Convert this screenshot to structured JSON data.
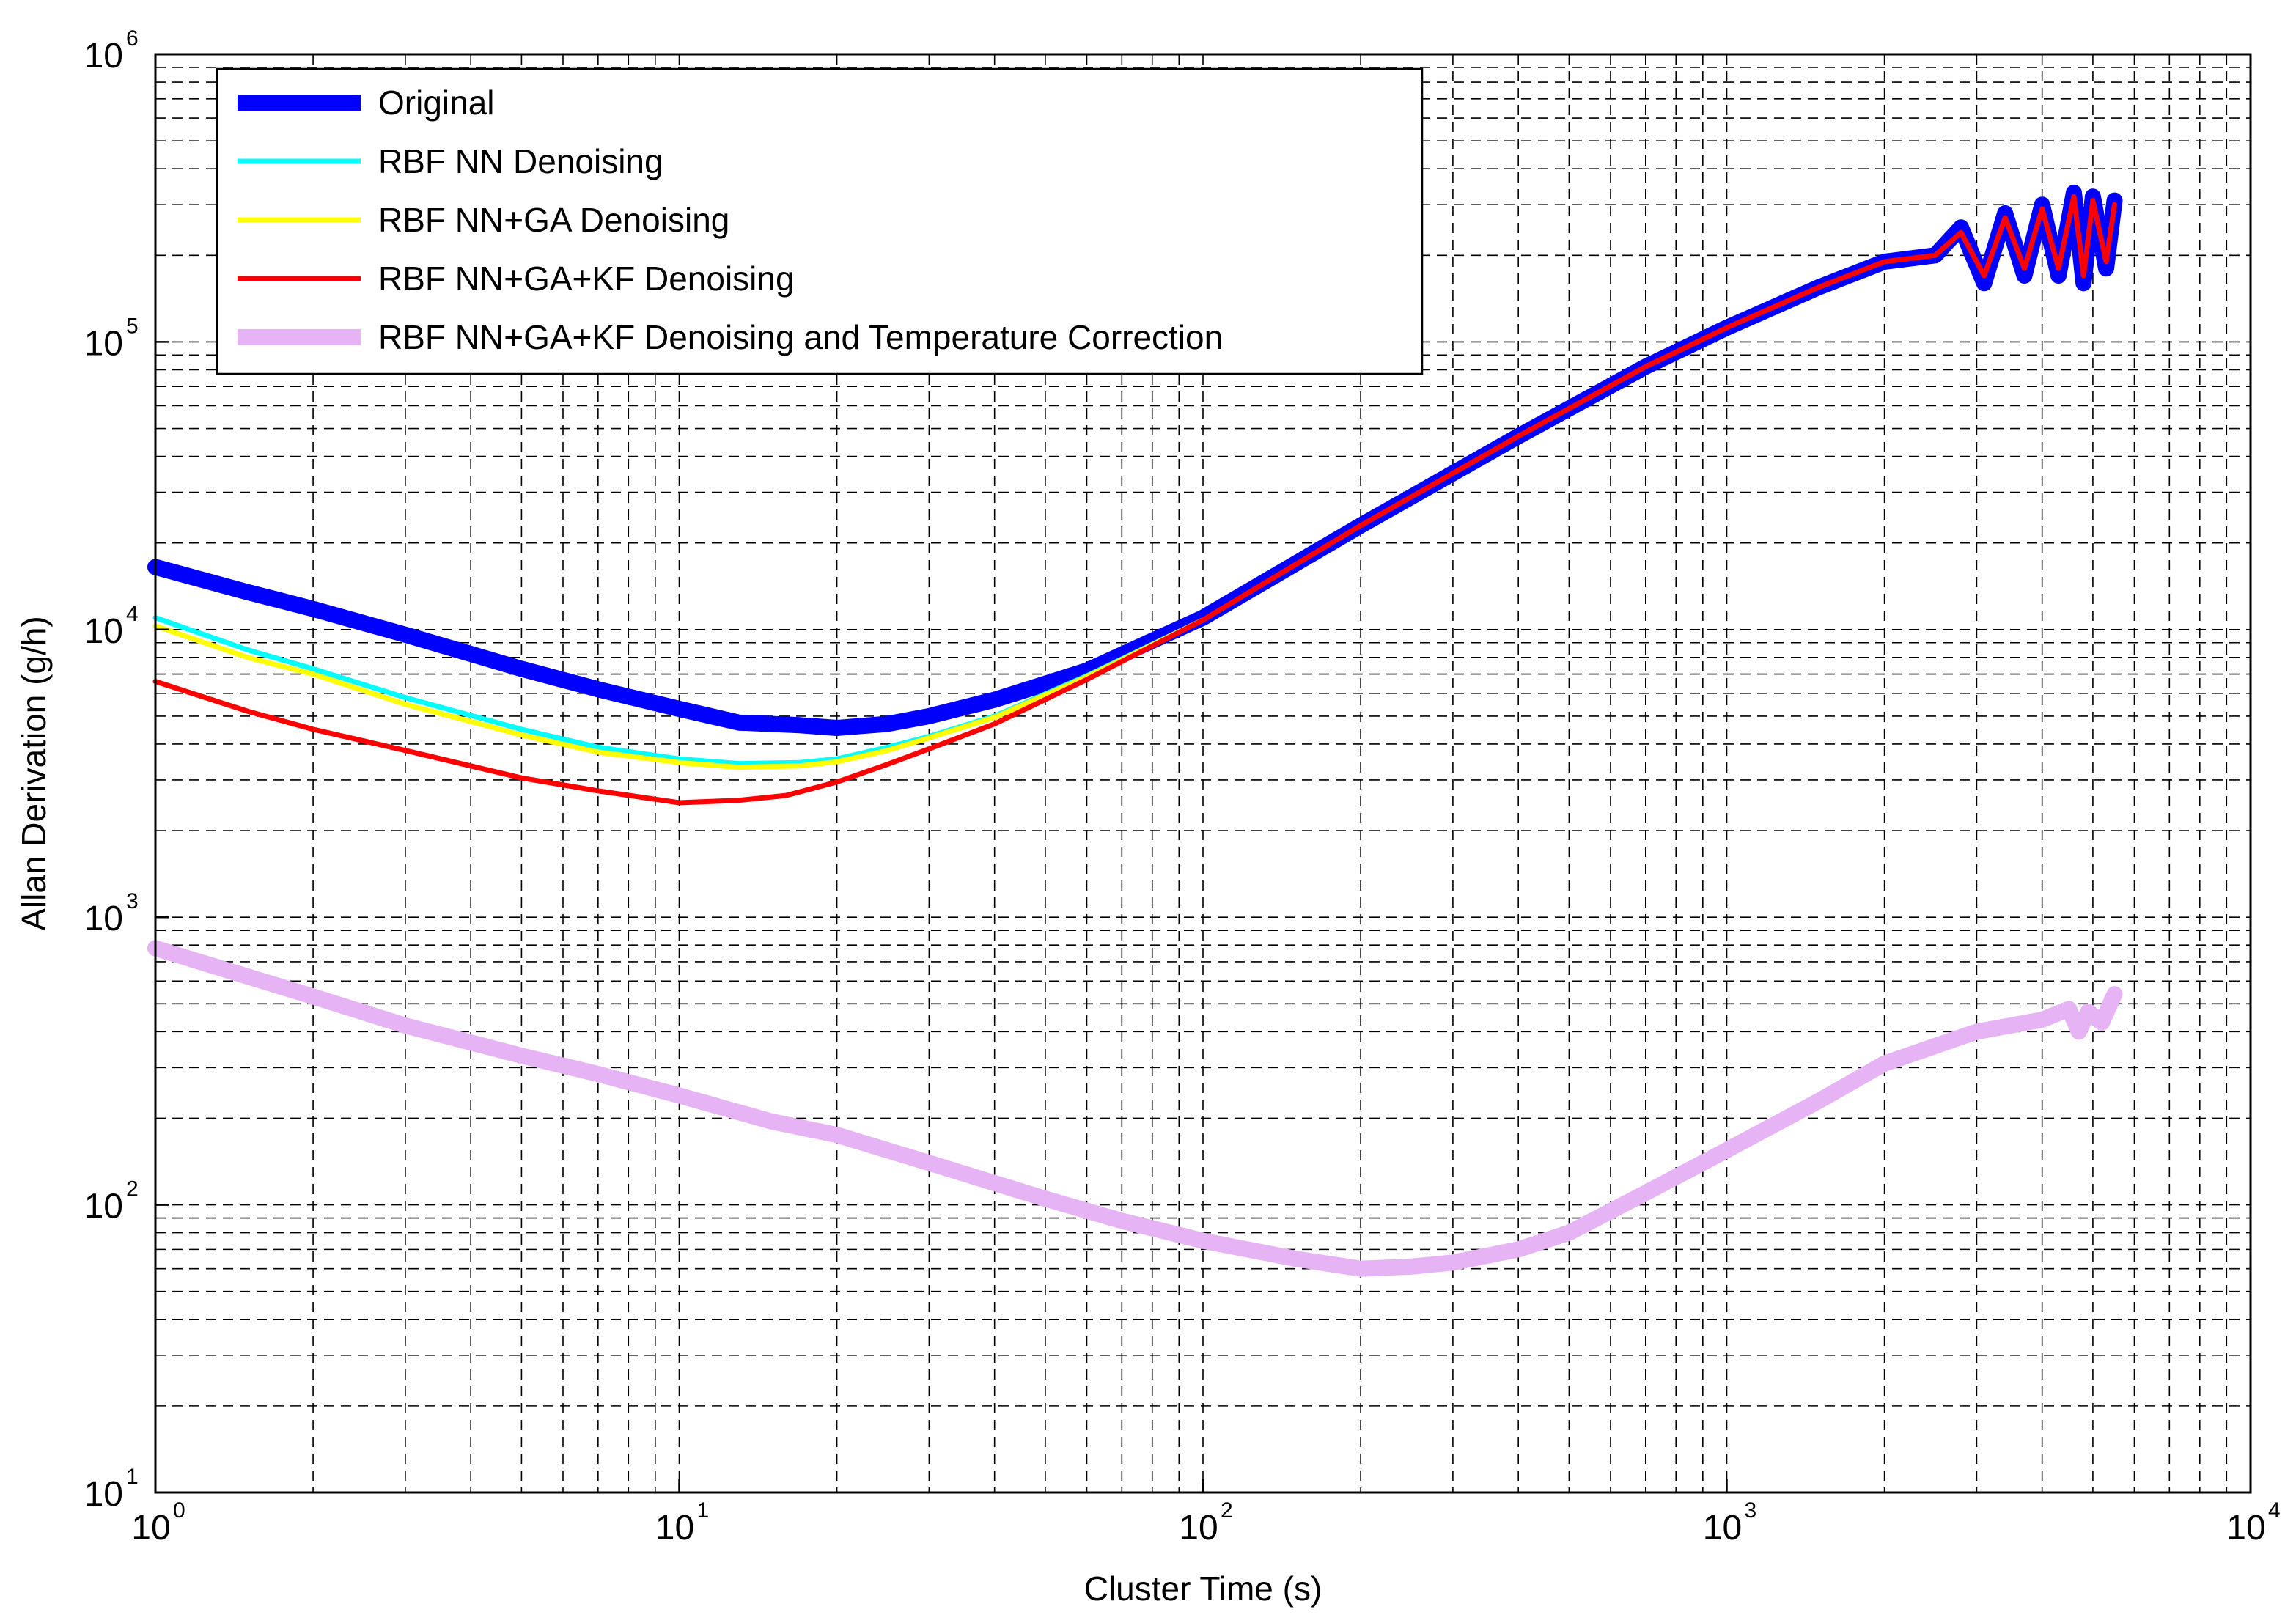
{
  "chart_data": {
    "type": "line",
    "title": "",
    "xlabel": "Cluster Time (s)",
    "ylabel": "Allan Derivation (g/h)",
    "xscale": "log",
    "yscale": "log",
    "xlim": [
      1,
      10000
    ],
    "ylim": [
      10,
      1000000
    ],
    "grid": true,
    "legend_position": "top-left",
    "x_ticks": [
      {
        "base": "10",
        "exp": "0",
        "value": 1
      },
      {
        "base": "10",
        "exp": "1",
        "value": 10
      },
      {
        "base": "10",
        "exp": "2",
        "value": 100
      },
      {
        "base": "10",
        "exp": "3",
        "value": 1000
      },
      {
        "base": "10",
        "exp": "4",
        "value": 10000
      }
    ],
    "y_ticks": [
      {
        "base": "10",
        "exp": "1",
        "value": 10
      },
      {
        "base": "10",
        "exp": "2",
        "value": 100
      },
      {
        "base": "10",
        "exp": "3",
        "value": 1000
      },
      {
        "base": "10",
        "exp": "4",
        "value": 10000
      },
      {
        "base": "10",
        "exp": "5",
        "value": 100000
      },
      {
        "base": "10",
        "exp": "6",
        "value": 1000000
      }
    ],
    "series": [
      {
        "name": "Original",
        "color": "#0000ff",
        "width": "thick",
        "x": [
          1,
          1.5,
          2,
          3,
          5,
          7,
          10,
          13,
          17,
          20,
          25,
          30,
          40,
          60,
          100,
          200,
          400,
          700,
          1000,
          1500,
          2000,
          2500,
          2800,
          3100,
          3400,
          3700,
          4000,
          4300,
          4600,
          4800,
          5000,
          5300,
          5500
        ],
        "y": [
          16500,
          13500,
          11800,
          9600,
          7300,
          6200,
          5300,
          4750,
          4650,
          4550,
          4700,
          5000,
          5700,
          7200,
          11000,
          23000,
          47000,
          82000,
          112000,
          155000,
          190000,
          200000,
          250000,
          160000,
          280000,
          170000,
          300000,
          170000,
          330000,
          160000,
          320000,
          180000,
          310000
        ]
      },
      {
        "name": "RBF NN Denoising",
        "color": "#00ffff",
        "width": "normal",
        "x": [
          1,
          1.5,
          2,
          3,
          5,
          7,
          10,
          13,
          17,
          20,
          25,
          30,
          40,
          60,
          100
        ],
        "y": [
          11000,
          8500,
          7300,
          5800,
          4500,
          3900,
          3550,
          3420,
          3450,
          3550,
          3900,
          4250,
          5000,
          6900,
          10800
        ]
      },
      {
        "name": "RBF NN+GA Denoising",
        "color": "#ffff00",
        "width": "normal",
        "x": [
          1,
          1.5,
          2,
          3,
          5,
          7,
          10,
          13,
          17,
          20,
          25,
          30,
          40,
          60,
          100
        ],
        "y": [
          10300,
          8000,
          7000,
          5500,
          4300,
          3750,
          3450,
          3320,
          3360,
          3470,
          3800,
          4200,
          4950,
          6850,
          10800
        ]
      },
      {
        "name": "RBF NN+GA+KF Denoising",
        "color": "#ff0000",
        "width": "normal",
        "x": [
          1,
          1.5,
          2,
          3,
          5,
          7,
          10,
          13,
          16,
          20,
          25,
          30,
          40,
          60,
          100,
          200,
          400,
          700,
          1000,
          1500,
          2000,
          2500,
          2800,
          3100,
          3400,
          3700,
          4000,
          4300,
          4600,
          4800,
          5000,
          5300,
          5500
        ],
        "y": [
          6600,
          5200,
          4500,
          3800,
          3050,
          2750,
          2500,
          2550,
          2650,
          2950,
          3400,
          3850,
          4700,
          6700,
          10800,
          23000,
          47000,
          82000,
          112000,
          155000,
          190000,
          200000,
          240000,
          170000,
          270000,
          180000,
          290000,
          180000,
          320000,
          170000,
          310000,
          190000,
          300000
        ]
      },
      {
        "name": "RBF NN+GA+KF Denoising and Temperature Correction",
        "color": "#e6b3f5",
        "width": "thick",
        "x": [
          1,
          2,
          3,
          5,
          7,
          10,
          15,
          20,
          30,
          50,
          70,
          100,
          150,
          200,
          250,
          300,
          400,
          500,
          700,
          1000,
          1500,
          2000,
          3000,
          4000,
          4500,
          4700,
          4900,
          5200,
          5500
        ],
        "y": [
          780,
          530,
          420,
          330,
          285,
          240,
          195,
          175,
          140,
          105,
          88,
          75,
          65,
          60,
          61,
          63,
          70,
          80,
          110,
          155,
          230,
          310,
          400,
          440,
          480,
          400,
          470,
          430,
          540
        ]
      }
    ]
  }
}
